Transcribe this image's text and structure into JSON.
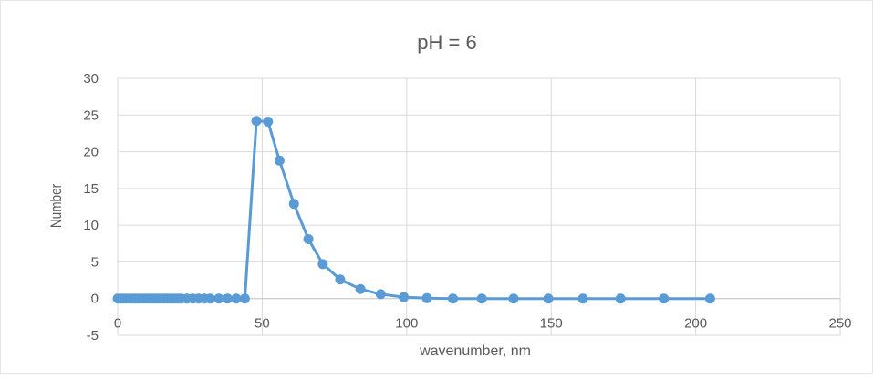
{
  "chart_data": {
    "type": "scatter",
    "title": "pH = 6",
    "xlabel": "wavenumber, nm",
    "ylabel": "Number",
    "xlim": [
      0,
      250
    ],
    "ylim": [
      -5,
      30
    ],
    "xticks": [
      0,
      50,
      100,
      150,
      200,
      250
    ],
    "yticks": [
      -5,
      0,
      5,
      10,
      15,
      20,
      25,
      30
    ],
    "grid": true,
    "legend": "none",
    "series": [
      {
        "color": "#5b9bd5",
        "x": [
          0,
          1,
          2,
          3,
          4,
          5,
          6,
          7,
          8,
          9,
          10,
          11,
          12,
          13,
          14,
          15,
          16,
          17,
          18,
          19,
          20,
          21,
          22,
          24,
          26,
          28,
          30,
          32,
          35,
          38,
          41,
          44,
          48,
          52,
          56,
          61,
          66,
          71,
          77,
          84,
          91,
          99,
          107,
          116,
          126,
          137,
          149,
          161,
          174,
          189,
          205
        ],
        "y": [
          0,
          0,
          0,
          0,
          0,
          0,
          0,
          0,
          0,
          0,
          0,
          0,
          0,
          0,
          0,
          0,
          0,
          0,
          0,
          0,
          0,
          0,
          0,
          0,
          0,
          0,
          0,
          0,
          0,
          0,
          0,
          0,
          24.2,
          24.1,
          18.8,
          12.9,
          8.1,
          4.7,
          2.6,
          1.3,
          0.6,
          0.2,
          0.05,
          0,
          0,
          0,
          0,
          0,
          0,
          0,
          0
        ]
      }
    ]
  }
}
